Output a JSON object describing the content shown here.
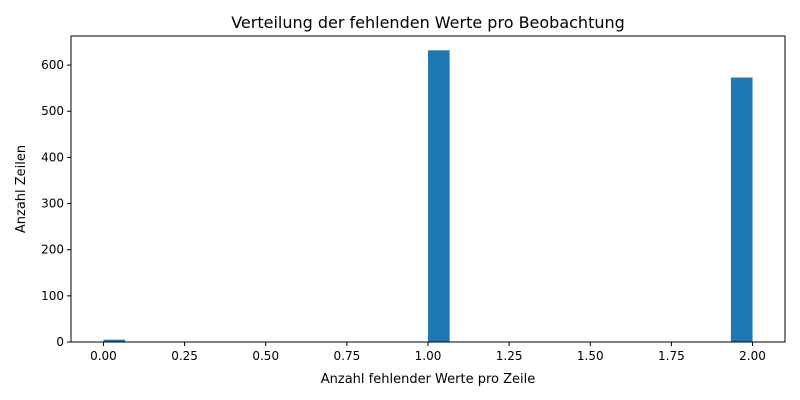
{
  "chart_data": {
    "type": "bar",
    "title": "Verteilung der fehlenden Werte pro Beobachtung",
    "xlabel": "Anzahl fehlender Werte pro Zeile",
    "ylabel": "Anzahl Zeilen",
    "bin_width": 0.0667,
    "bars": [
      {
        "x_start": 0.0,
        "value": 5
      },
      {
        "x_start": 1.0,
        "value": 632
      },
      {
        "x_start": 1.9333,
        "value": 573
      }
    ],
    "xlim": [
      -0.1,
      2.1
    ],
    "ylim": [
      0,
      663
    ],
    "x_ticks": [
      "0.00",
      "0.25",
      "0.50",
      "0.75",
      "1.00",
      "1.25",
      "1.50",
      "1.75",
      "2.00"
    ],
    "y_ticks": [
      "0",
      "100",
      "200",
      "300",
      "400",
      "500",
      "600"
    ],
    "grid": false,
    "bar_color": "#1f77b4"
  }
}
